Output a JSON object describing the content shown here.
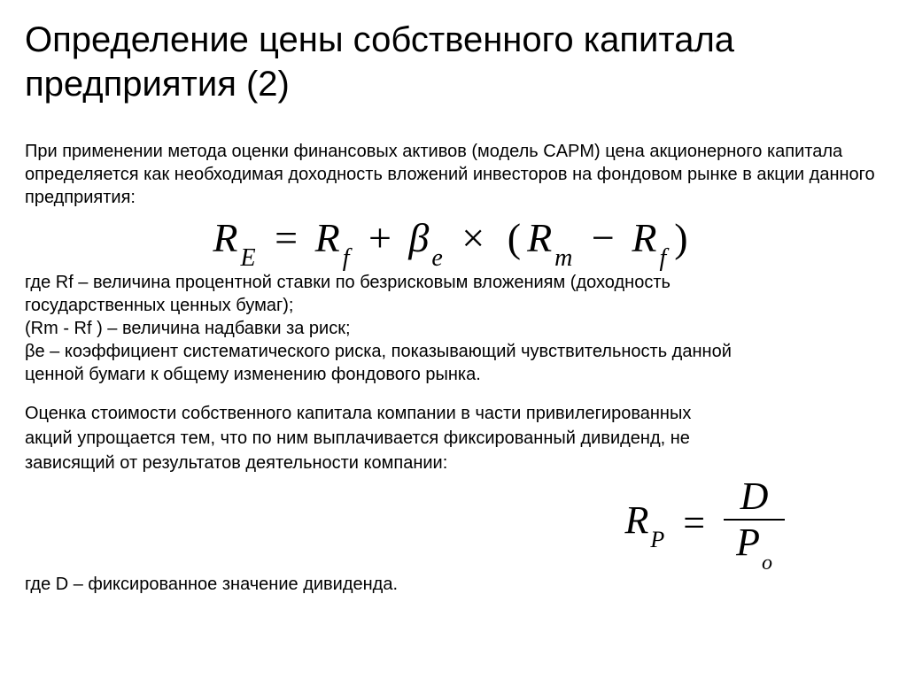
{
  "title": "Определение цены собственного капитала предприятия (2)",
  "intro": "При применении метода оценки финансовых активов (модель CAPM) цена акционерного капитала определяется как необходимая доходность вложений инвесторов на фондовом рынке в акции данного предприятия:",
  "formula1": {
    "lhs_base": "R",
    "lhs_sub": "E",
    "t1_base": "R",
    "t1_sub": "f",
    "plus": "+",
    "t2_base": "β",
    "t2_sub": "e",
    "times": "×",
    "lp": "(",
    "t3_base": "R",
    "t3_sub": "m",
    "minus": "−",
    "t4_base": "R",
    "t4_sub": "f",
    "rp": ")",
    "eq": "="
  },
  "defs1_l1": "где Rf – величина процентной ставки по безрисковым вложениям (доходность",
  "defs1_l2": "государственных ценных бумаг);",
  "defs1_l3": "(Rm  - Rf ) – величина надбавки за риск;",
  "defs1_l4": "βe – коэффициент систематического риска, показывающий чувствительность данной",
  "defs1_l5": "ценной бумаги к общему изменению фондового рынка.",
  "para2_l1": "Оценка стоимости собственного капитала компании в части привилегированных",
  "para2_l2": "акций упрощается тем, что по ним выплачивается фиксированный дивиденд, не",
  "para2_l3": "зависящий от результатов деятельности компании:",
  "formula2": {
    "lhs_base": "R",
    "lhs_sub": "P",
    "eq": "=",
    "num": "D",
    "den_base": "P",
    "den_sub": "o"
  },
  "defs2": "где D – фиксированное значение дивиденда."
}
